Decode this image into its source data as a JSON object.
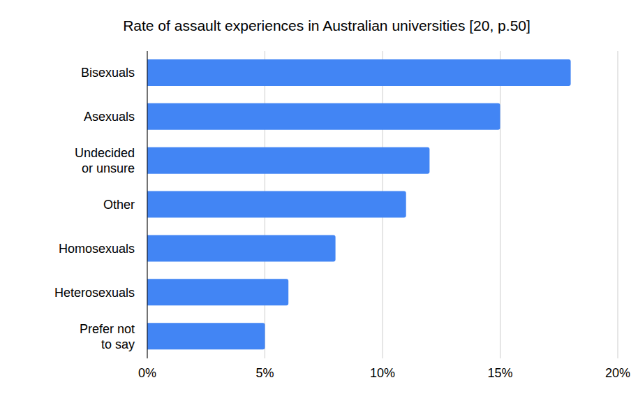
{
  "chart_data": {
    "type": "bar",
    "title": "Rate of assault experiences in Australian universities [20, p.50]",
    "orientation": "horizontal",
    "categories": [
      "Bisexuals",
      "Asexuals",
      "Undecided or unsure",
      "Other",
      "Homosexuals",
      "Heterosexuals",
      "Prefer not to say"
    ],
    "values": [
      18,
      15,
      12,
      11,
      8,
      6,
      5
    ],
    "color": "#4285f4",
    "xlim": [
      0,
      20
    ],
    "xticks": [
      {
        "value": 0,
        "label": "0%"
      },
      {
        "value": 5,
        "label": "5%"
      },
      {
        "value": 10,
        "label": "10%"
      },
      {
        "value": 15,
        "label": "15%"
      },
      {
        "value": 20,
        "label": "20%"
      }
    ],
    "grid": true
  }
}
